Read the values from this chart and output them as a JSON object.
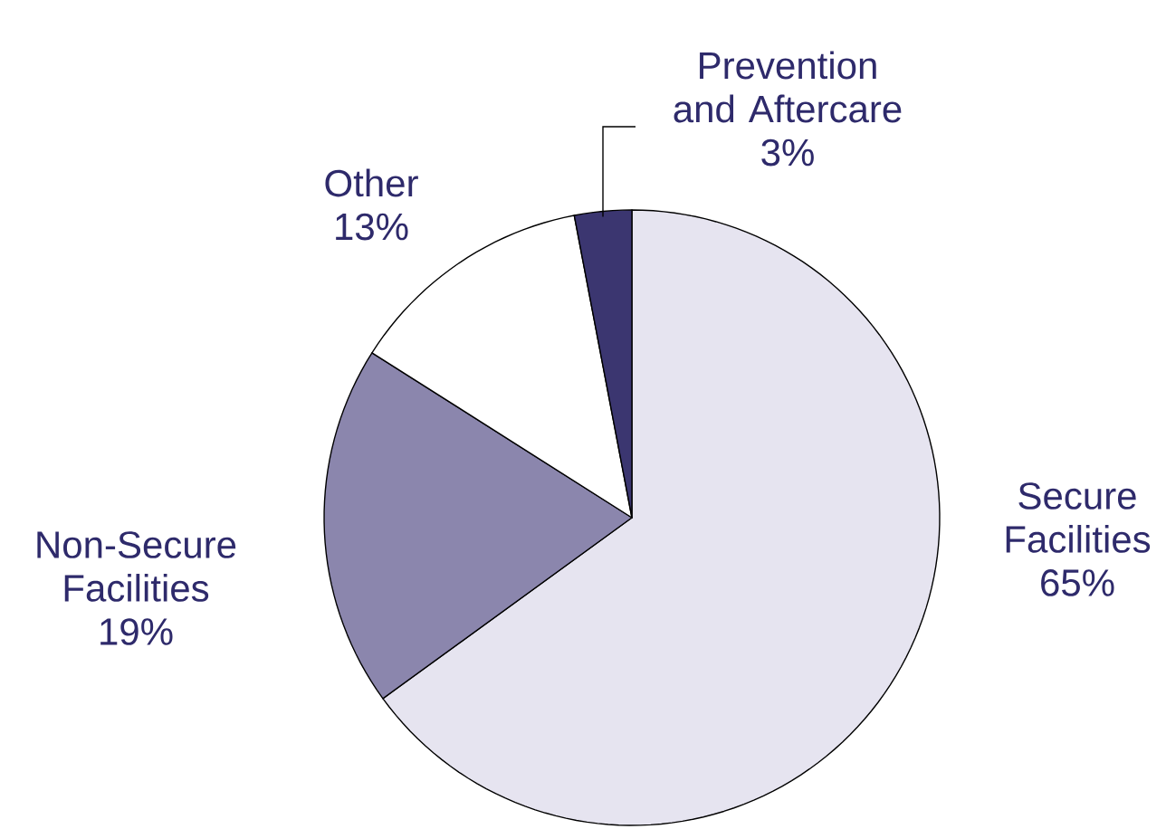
{
  "chart_data": {
    "type": "pie",
    "categories": [
      "Secure Facilities",
      "Non-Secure Facilities",
      "Other",
      "Prevention and Aftercare"
    ],
    "values": [
      65,
      19,
      13,
      3
    ],
    "colors": [
      "#e6e4f0",
      "#8b86ad",
      "#ffffff",
      "#3b3670"
    ],
    "value_labels": [
      "65%",
      "19%",
      "13%",
      "3%"
    ]
  }
}
